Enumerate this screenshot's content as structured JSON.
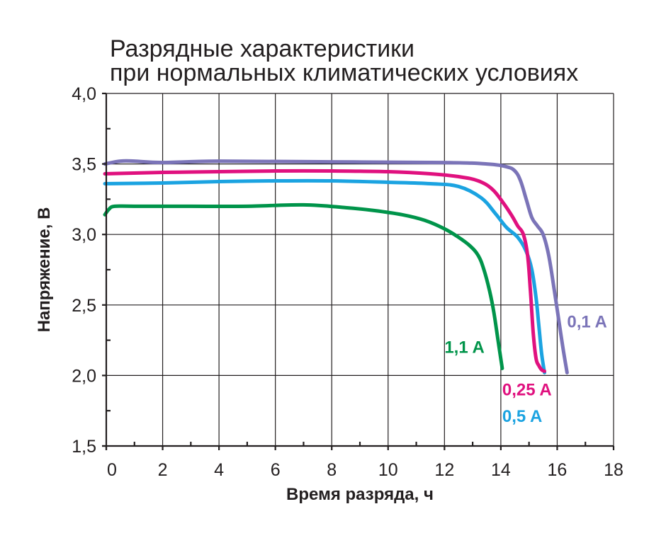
{
  "chart_data": {
    "type": "line",
    "title": "Разрядные характеристики",
    "subtitle": "при нормальных климатических условиях",
    "xlabel": "Время разряда, ч",
    "ylabel": "Напряжение, В",
    "xlim": [
      0,
      18
    ],
    "ylim": [
      1.5,
      4.0
    ],
    "x_ticks": [
      "0",
      "2",
      "4",
      "6",
      "8",
      "10",
      "12",
      "14",
      "16",
      "18"
    ],
    "y_ticks": [
      "1,5",
      "2,0",
      "2,5",
      "3,0",
      "3,5",
      "4,0"
    ],
    "grid": true,
    "colors": {
      "green": "#00944a",
      "blue": "#1ba3e1",
      "magenta": "#e0117f",
      "purple": "#7b74b8",
      "text": "#231f20"
    },
    "series": [
      {
        "name": "1,1 A",
        "color": "#00944a",
        "x": [
          -0.05,
          0.1,
          0.3,
          1,
          3,
          5,
          7,
          8.5,
          9.5,
          10.5,
          11.3,
          12,
          12.5,
          12.9,
          13.2,
          13.4,
          13.6,
          13.75,
          13.9,
          14.05
        ],
        "y": [
          3.14,
          3.18,
          3.2,
          3.2,
          3.2,
          3.2,
          3.21,
          3.19,
          3.17,
          3.14,
          3.1,
          3.04,
          2.98,
          2.92,
          2.85,
          2.75,
          2.6,
          2.45,
          2.25,
          2.05
        ]
      },
      {
        "name": "0,5 A",
        "color": "#1ba3e1",
        "x": [
          -0.05,
          2,
          4,
          6,
          8,
          10,
          11.5,
          12.5,
          13.3,
          13.8,
          14.2,
          14.6,
          14.9,
          15.1,
          15.25,
          15.35,
          15.45,
          15.55
        ],
        "y": [
          3.36,
          3.365,
          3.375,
          3.38,
          3.38,
          3.37,
          3.36,
          3.34,
          3.26,
          3.15,
          3.05,
          2.98,
          2.88,
          2.75,
          2.55,
          2.35,
          2.15,
          2.02
        ]
      },
      {
        "name": "0,25 A",
        "color": "#e0117f",
        "x": [
          -0.05,
          2,
          4,
          6,
          8,
          10,
          11.5,
          12.5,
          13.2,
          13.7,
          14.1,
          14.4,
          14.6,
          14.8,
          14.95,
          15.05,
          15.15,
          15.25,
          15.35,
          15.45,
          15.55
        ],
        "y": [
          3.43,
          3.44,
          3.445,
          3.45,
          3.45,
          3.445,
          3.43,
          3.41,
          3.38,
          3.32,
          3.22,
          3.13,
          3.06,
          3.0,
          2.85,
          2.6,
          2.3,
          2.12,
          2.07,
          2.04,
          2.03
        ]
      },
      {
        "name": "0,1 A",
        "color": "#7b74b8",
        "x": [
          -0.05,
          0.5,
          1,
          2,
          4,
          8,
          12,
          13.5,
          14.2,
          14.5,
          14.7,
          14.9,
          15.1,
          15.3,
          15.5,
          15.7,
          15.9,
          16.05,
          16.2,
          16.35
        ],
        "y": [
          3.5,
          3.52,
          3.52,
          3.51,
          3.52,
          3.515,
          3.51,
          3.5,
          3.48,
          3.45,
          3.38,
          3.25,
          3.12,
          3.06,
          3.0,
          2.85,
          2.6,
          2.4,
          2.2,
          2.02
        ]
      }
    ],
    "annotations": [
      {
        "text": "1,1 A",
        "color": "#00944a",
        "x": 12.0,
        "y": 2.16
      },
      {
        "text": "0,25 A",
        "color": "#e0117f",
        "x": 14.05,
        "y": 1.86
      },
      {
        "text": "0,5 A",
        "color": "#1ba3e1",
        "x": 14.05,
        "y": 1.67
      },
      {
        "text": "0,1 A",
        "color": "#7b74b8",
        "x": 16.35,
        "y": 2.34
      }
    ]
  }
}
